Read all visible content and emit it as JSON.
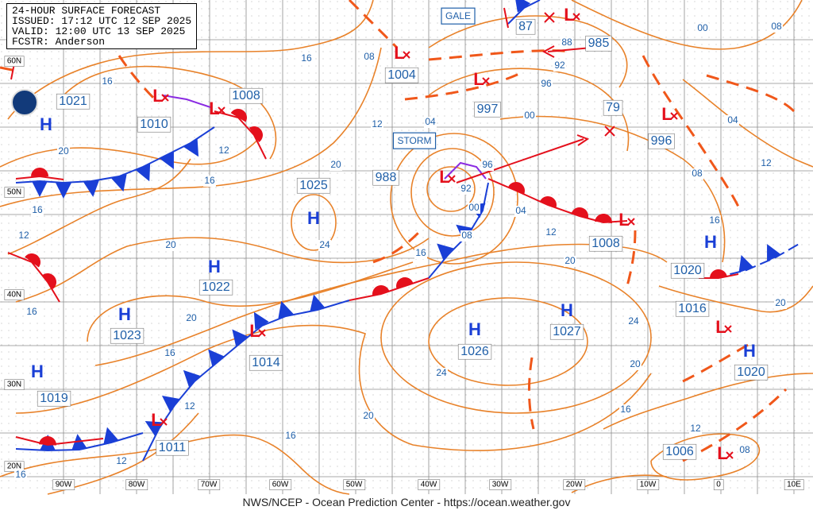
{
  "header": {
    "lines": [
      "24-HOUR SURFACE FORECAST",
      "ISSUED: 17:12 UTC 12 SEP 2025",
      "VALID:  12:00 UTC 13 SEP 2025",
      "FCSTR:  Anderson"
    ]
  },
  "symbols": {
    "high": "H",
    "low": "L"
  },
  "highs": [
    "1021",
    "1019",
    "1023",
    "1022",
    "1025",
    "1026",
    "1027",
    "1020",
    "1020"
  ],
  "lows": [
    "1010",
    "1008",
    "1004",
    "997",
    "87",
    "985",
    "79",
    "996",
    "988",
    "1008",
    "1016",
    "1014",
    "1011",
    "1006"
  ],
  "warnings": [
    "GALE",
    "STORM"
  ],
  "isobar_labels": [
    "16",
    "16",
    "08",
    "12",
    "04",
    "00",
    "96",
    "92",
    "88",
    "00",
    "08",
    "04",
    "12",
    "08",
    "16",
    "20",
    "20",
    "20",
    "12",
    "16",
    "16",
    "12",
    "20",
    "24",
    "16",
    "20",
    "16",
    "96",
    "92",
    "00",
    "04",
    "08",
    "16",
    "12",
    "20",
    "24",
    "20",
    "24",
    "16",
    "12",
    "08",
    "20",
    "16",
    "12",
    "12",
    "16"
  ],
  "latitudes": [
    "60N",
    "50N",
    "40N",
    "30N",
    "20N"
  ],
  "longitudes": [
    "90W",
    "80W",
    "70W",
    "60W",
    "50W",
    "40W",
    "30W",
    "20W",
    "10W",
    "0",
    "10E"
  ],
  "footer": "NWS/NCEP - Ocean Prediction Center - https://ocean.weather.gov"
}
